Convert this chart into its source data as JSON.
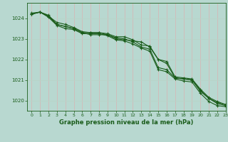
{
  "title": "Graphe pression niveau de la mer (hPa)",
  "background_color": "#b8d8d0",
  "grid_color_x": "#d4b8b8",
  "grid_color_y": "#b8d4c8",
  "line_color": "#1a5c1a",
  "xlim": [
    -0.5,
    23
  ],
  "ylim": [
    1019.5,
    1024.75
  ],
  "yticks": [
    1020,
    1021,
    1022,
    1023,
    1024
  ],
  "xticks": [
    0,
    1,
    2,
    3,
    4,
    5,
    6,
    7,
    8,
    9,
    10,
    11,
    12,
    13,
    14,
    15,
    16,
    17,
    18,
    19,
    20,
    21,
    22,
    23
  ],
  "series": [
    [
      1024.2,
      1024.3,
      1024.1,
      1023.7,
      1023.6,
      1023.5,
      1023.3,
      1023.2,
      1023.2,
      1023.2,
      1023.0,
      1022.95,
      1022.9,
      1022.85,
      1022.6,
      1022.0,
      1021.8,
      1021.1,
      1021.05,
      1021.0,
      1020.5,
      1020.1,
      1019.9,
      1019.8
    ],
    [
      1024.2,
      1024.3,
      1024.15,
      1023.7,
      1023.6,
      1023.5,
      1023.3,
      1023.3,
      1023.3,
      1023.2,
      1023.05,
      1023.0,
      1022.85,
      1022.6,
      1022.5,
      1021.6,
      1021.5,
      1021.1,
      1021.05,
      1021.0,
      1020.45,
      1020.1,
      1019.85,
      1019.75
    ],
    [
      1024.25,
      1024.3,
      1024.1,
      1023.8,
      1023.7,
      1023.55,
      1023.35,
      1023.3,
      1023.3,
      1023.25,
      1023.1,
      1023.1,
      1022.95,
      1022.7,
      1022.65,
      1022.0,
      1021.9,
      1021.15,
      1021.1,
      1021.05,
      1020.55,
      1020.15,
      1019.95,
      1019.8
    ],
    [
      1024.2,
      1024.3,
      1024.05,
      1023.65,
      1023.5,
      1023.45,
      1023.25,
      1023.25,
      1023.25,
      1023.15,
      1022.95,
      1022.9,
      1022.75,
      1022.55,
      1022.4,
      1021.5,
      1021.4,
      1021.05,
      1020.95,
      1020.9,
      1020.35,
      1019.95,
      1019.75,
      1019.7
    ]
  ]
}
